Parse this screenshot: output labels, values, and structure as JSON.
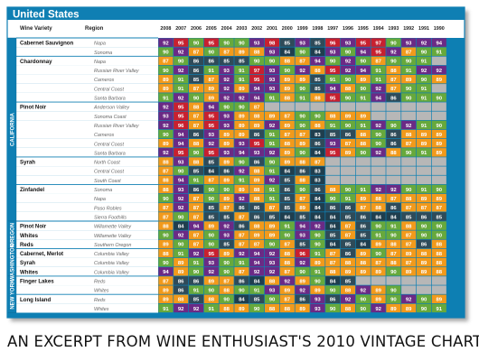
{
  "title": "United States",
  "headers": {
    "variety": "Wine Variety",
    "region": "Region"
  },
  "years": [
    "2008",
    "2007",
    "2006",
    "2005",
    "2004",
    "2003",
    "2002",
    "2001",
    "2000",
    "1999",
    "1998",
    "1997",
    "1996",
    "1995",
    "1994",
    "1993",
    "1992",
    "1991",
    "1990"
  ],
  "states": [
    "CALIFORNIA",
    "OREGON",
    "WASHINGTON",
    "NEW YORK"
  ],
  "rows": [
    {
      "variety": "Cabernet Sauvignon",
      "region": "Napa",
      "scores": [
        92,
        95,
        90,
        95,
        90,
        90,
        93,
        98,
        85,
        93,
        85,
        96,
        93,
        95,
        97,
        90,
        93,
        92,
        94
      ]
    },
    {
      "variety": "",
      "region": "Sonoma",
      "scores": [
        90,
        92,
        87,
        90,
        87,
        89,
        88,
        93,
        84,
        90,
        84,
        93,
        90,
        94,
        95,
        92,
        87,
        90,
        91
      ]
    },
    {
      "variety": "Chardonnay",
      "region": "Napa",
      "scores": [
        87,
        90,
        86,
        86,
        85,
        85,
        90,
        90,
        88,
        87,
        94,
        90,
        92,
        90,
        87,
        90,
        90,
        91,
        null
      ]
    },
    {
      "variety": "",
      "region": "Russian River Valley",
      "scores": [
        90,
        92,
        86,
        91,
        93,
        91,
        97,
        93,
        90,
        92,
        88,
        95,
        92,
        94,
        91,
        88,
        91,
        92,
        92
      ]
    },
    {
      "variety": "",
      "region": "Carneros",
      "scores": [
        89,
        91,
        85,
        87,
        92,
        91,
        95,
        93,
        89,
        89,
        85,
        91,
        90,
        89,
        91,
        87,
        89,
        90,
        89
      ]
    },
    {
      "variety": "",
      "region": "Central Coast",
      "scores": [
        89,
        91,
        87,
        89,
        92,
        89,
        94,
        93,
        89,
        90,
        85,
        94,
        88,
        90,
        92,
        87,
        90,
        91,
        null
      ]
    },
    {
      "variety": "",
      "region": "Santa Barbara",
      "scores": [
        91,
        92,
        90,
        89,
        92,
        92,
        94,
        91,
        88,
        91,
        88,
        95,
        90,
        91,
        94,
        86,
        90,
        91,
        90
      ]
    },
    {
      "variety": "Pinot Noir",
      "region": "Anderson Valley",
      "scores": [
        92,
        95,
        88,
        94,
        90,
        90,
        87,
        null,
        null,
        null,
        null,
        null,
        null,
        null,
        null,
        null,
        null,
        null,
        null
      ]
    },
    {
      "variety": "",
      "region": "Sonoma Coast",
      "scores": [
        93,
        95,
        87,
        95,
        93,
        89,
        88,
        89,
        87,
        90,
        90,
        88,
        89,
        89,
        null,
        null,
        null,
        null,
        null
      ]
    },
    {
      "variety": "",
      "region": "Russian River Valley",
      "scores": [
        92,
        96,
        87,
        95,
        93,
        89,
        89,
        92,
        89,
        90,
        88,
        91,
        90,
        91,
        92,
        90,
        92,
        91,
        90
      ]
    },
    {
      "variety": "",
      "region": "Carneros",
      "scores": [
        90,
        94,
        86,
        93,
        89,
        89,
        86,
        91,
        87,
        87,
        83,
        85,
        86,
        88,
        90,
        86,
        88,
        89,
        89
      ]
    },
    {
      "variety": "",
      "region": "Central Coast",
      "scores": [
        89,
        94,
        88,
        92,
        89,
        93,
        95,
        91,
        88,
        89,
        86,
        93,
        87,
        88,
        90,
        86,
        87,
        89,
        89
      ]
    },
    {
      "variety": "",
      "region": "Santa Barbara",
      "scores": [
        92,
        95,
        90,
        95,
        93,
        94,
        93,
        92,
        89,
        90,
        84,
        95,
        89,
        90,
        92,
        88,
        90,
        91,
        89
      ]
    },
    {
      "variety": "Syrah",
      "region": "North Coast",
      "scores": [
        88,
        93,
        88,
        85,
        89,
        90,
        86,
        90,
        89,
        88,
        87,
        null,
        null,
        null,
        null,
        null,
        null,
        null,
        null
      ]
    },
    {
      "variety": "",
      "region": "Central Coast",
      "scores": [
        87,
        90,
        85,
        84,
        86,
        92,
        88,
        91,
        84,
        86,
        83,
        null,
        null,
        null,
        null,
        null,
        null,
        null,
        null
      ]
    },
    {
      "variety": "",
      "region": "South Coast",
      "scores": [
        88,
        94,
        91,
        87,
        89,
        91,
        89,
        92,
        85,
        88,
        83,
        null,
        null,
        null,
        null,
        null,
        null,
        null,
        null
      ]
    },
    {
      "variety": "Zinfandel",
      "region": "Sonoma",
      "scores": [
        88,
        93,
        86,
        90,
        90,
        89,
        88,
        91,
        86,
        90,
        86,
        88,
        90,
        91,
        92,
        92,
        90,
        91,
        90
      ]
    },
    {
      "variety": "",
      "region": "Napa",
      "scores": [
        90,
        92,
        87,
        90,
        89,
        92,
        88,
        91,
        85,
        87,
        84,
        90,
        91,
        89,
        88,
        87,
        88,
        89,
        89
      ]
    },
    {
      "variety": "",
      "region": "Paso Robles",
      "scores": [
        87,
        92,
        87,
        85,
        87,
        86,
        86,
        87,
        85,
        89,
        84,
        86,
        86,
        87,
        88,
        86,
        87,
        87,
        87
      ]
    },
    {
      "variety": "",
      "region": "Sierra Foothills",
      "scores": [
        87,
        90,
        87,
        85,
        85,
        87,
        86,
        85,
        84,
        85,
        84,
        84,
        85,
        86,
        84,
        84,
        85,
        86,
        85
      ]
    },
    {
      "variety": "Pinot Noir",
      "region": "Willamette Valley",
      "scores": [
        88,
        84,
        94,
        89,
        92,
        86,
        88,
        89,
        91,
        94,
        92,
        84,
        87,
        86,
        90,
        91,
        88,
        90,
        90
      ]
    },
    {
      "variety": "Whites",
      "region": "Willamette Valley",
      "scores": [
        90,
        92,
        87,
        90,
        93,
        87,
        89,
        89,
        90,
        93,
        90,
        85,
        87,
        85,
        91,
        90,
        87,
        90,
        90
      ]
    },
    {
      "variety": "Reds",
      "region": "Southern Oregon",
      "scores": [
        89,
        90,
        87,
        90,
        85,
        87,
        87,
        90,
        87,
        85,
        90,
        84,
        85,
        84,
        89,
        88,
        87,
        86,
        88
      ]
    },
    {
      "variety": "Cabernet, Merlot",
      "region": "Columbia Valley",
      "scores": [
        88,
        91,
        92,
        95,
        89,
        92,
        94,
        92,
        88,
        96,
        91,
        87,
        86,
        89,
        90,
        87,
        89,
        88,
        88
      ]
    },
    {
      "variety": "Syrah",
      "region": "Columbia Valley",
      "scores": [
        90,
        89,
        91,
        93,
        90,
        91,
        94,
        93,
        88,
        92,
        89,
        87,
        88,
        88,
        87,
        88,
        87,
        89,
        88
      ]
    },
    {
      "variety": "Whites",
      "region": "Columbia Valley",
      "scores": [
        94,
        89,
        90,
        92,
        90,
        87,
        92,
        92,
        87,
        90,
        91,
        88,
        89,
        89,
        89,
        90,
        89,
        89,
        88
      ]
    },
    {
      "variety": "Finger Lakes",
      "region": "Reds",
      "scores": [
        87,
        86,
        86,
        89,
        87,
        86,
        84,
        88,
        92,
        89,
        90,
        84,
        85,
        null,
        null,
        null,
        null,
        null,
        null
      ]
    },
    {
      "variety": "",
      "region": "Whites",
      "scores": [
        89,
        86,
        91,
        90,
        88,
        90,
        91,
        93,
        89,
        92,
        89,
        90,
        88,
        92,
        89,
        90,
        null,
        null,
        null
      ]
    },
    {
      "variety": "Long Island",
      "region": "Reds",
      "scores": [
        89,
        88,
        85,
        88,
        90,
        84,
        85,
        90,
        87,
        86,
        93,
        86,
        92,
        90,
        89,
        90,
        92,
        90,
        89
      ]
    },
    {
      "variety": "",
      "region": "Whites",
      "scores": [
        91,
        92,
        92,
        91,
        88,
        89,
        90,
        88,
        88,
        89,
        93,
        90,
        88,
        90,
        92,
        89,
        89,
        90,
        91
      ]
    }
  ],
  "caption": "AN EXCERPT FROM WINE ENTHUSIAST'S 2010 VINTAGE CHART.",
  "colors": {
    "blue": "#0f7fb3",
    "dark_blue": "#07496f",
    "navy": "#1f3e4e",
    "slate": "#2f4b59",
    "orange": "#f29a1b",
    "green": "#67a93c",
    "purple": "#6b2a85",
    "red": "#c8202f",
    "gray": "#b7b7b7",
    "white": "#ffffff"
  }
}
